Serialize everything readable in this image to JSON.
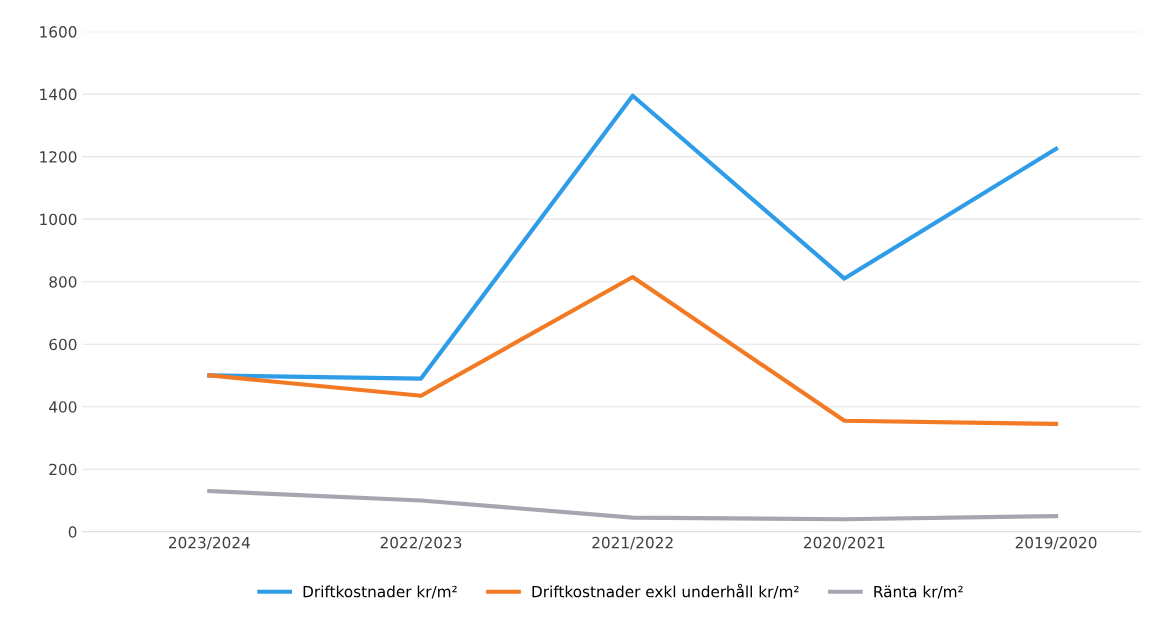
{
  "chart_data": {
    "type": "line",
    "categories": [
      "2023/2024",
      "2022/2023",
      "2021/2022",
      "2020/2021",
      "2019/2020"
    ],
    "series": [
      {
        "name": "Driftkostnader kr/m²",
        "color": "#2e9ce6",
        "values": [
          500,
          490,
          1395,
          810,
          1225
        ]
      },
      {
        "name": "Driftkostnader exkl underhåll kr/m²",
        "color": "#f27a24",
        "values": [
          500,
          435,
          815,
          355,
          345
        ]
      },
      {
        "name": "Ränta kr/m²",
        "color": "#a6a6b0",
        "values": [
          130,
          100,
          45,
          40,
          50
        ]
      }
    ],
    "ylim": [
      0,
      1600
    ],
    "yticks": [
      0,
      200,
      400,
      600,
      800,
      1000,
      1200,
      1400,
      1600
    ],
    "grid": "y",
    "legend": "bottom",
    "marker": "none",
    "line_style": "solid"
  }
}
